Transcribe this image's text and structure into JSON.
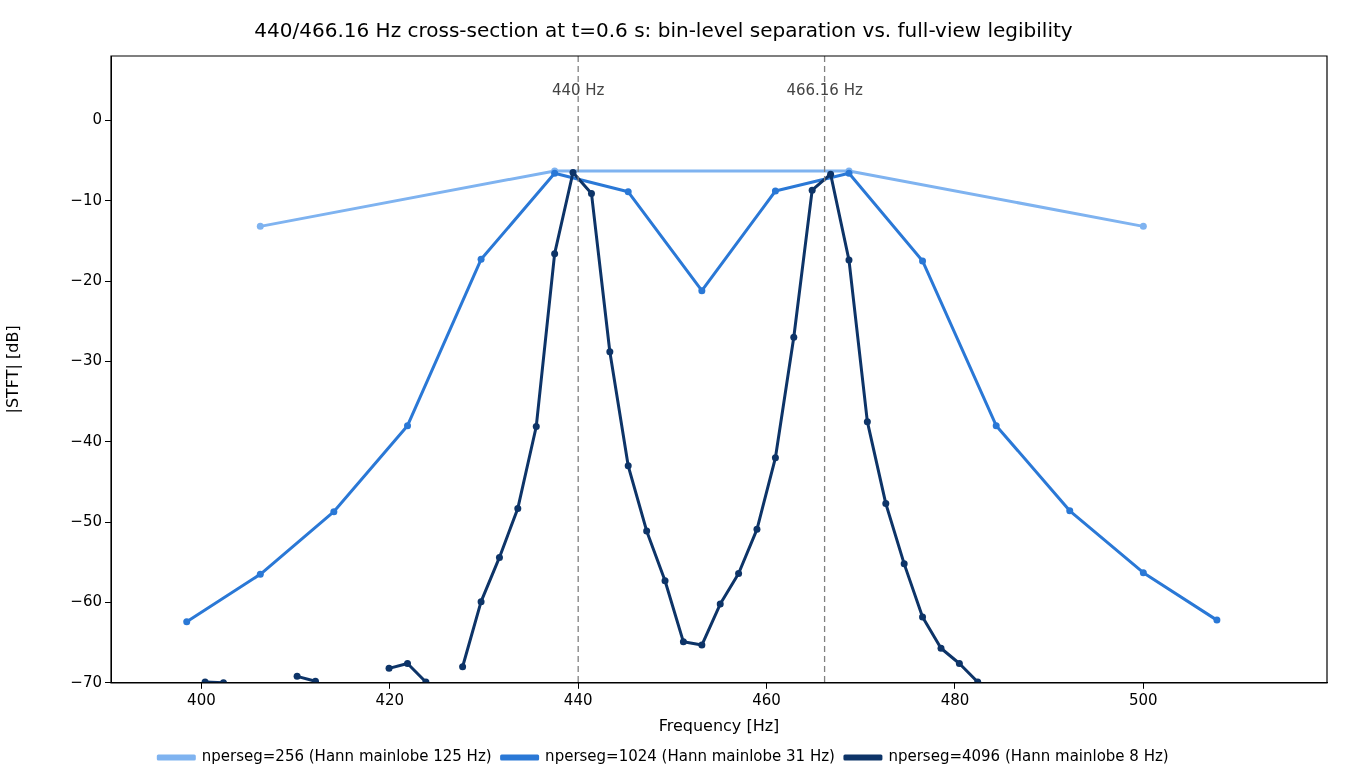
{
  "chart_data": {
    "type": "line",
    "title": "440/466.16 Hz cross-section at t=0.6 s: bin-level separation vs. full-view legibility",
    "xlabel": "Frequency [Hz]",
    "ylabel": "|STFT| [dB]",
    "xlim": [
      390.4,
      519.5
    ],
    "xticks": [
      400,
      420,
      440,
      460,
      480,
      500
    ],
    "ylim": [
      -70,
      8
    ],
    "yticks": [
      {
        "value": -70,
        "label": "−70"
      },
      {
        "value": -60,
        "label": "−60"
      },
      {
        "value": -50,
        "label": "−50"
      },
      {
        "value": -40,
        "label": "−40"
      },
      {
        "value": -30,
        "label": "−30"
      },
      {
        "value": -20,
        "label": "−20"
      },
      {
        "value": -10,
        "label": "−10"
      },
      0
    ],
    "grid": false,
    "legend": "bottom",
    "marker": "circle",
    "line_style": "solid",
    "ref_lines": [
      {
        "axis": "x",
        "value": 440,
        "label": "440 Hz",
        "color": "#808080",
        "line_style": "dashed"
      },
      {
        "axis": "x",
        "value": 466.16,
        "label": "466.16 Hz",
        "color": "#808080",
        "line_style": "dashed"
      }
    ],
    "series": [
      {
        "name": "nperseg=256 (Hann mainlobe 125 Hz)",
        "color": "#7fb3f0",
        "x": [
          406.25,
          437.5,
          468.75,
          500
        ],
        "values": [
          -13.2,
          -6.3,
          -6.3,
          -13.2
        ]
      },
      {
        "name": "nperseg=1024 (Hann mainlobe 31 Hz)",
        "color": "#2a78d6",
        "x": [
          398.44,
          406.25,
          414.06,
          421.88,
          429.69,
          437.5,
          445.31,
          453.13,
          460.94,
          468.75,
          476.56,
          484.38,
          492.19,
          500,
          507.81
        ],
        "values": [
          -62.4,
          -56.5,
          -48.7,
          -38.0,
          -17.3,
          -6.6,
          -8.9,
          -21.2,
          -8.8,
          -6.6,
          -17.5,
          -38.0,
          -48.6,
          -56.3,
          -62.2
        ]
      },
      {
        "name": "nperseg=4096 (Hann mainlobe 8 Hz)",
        "color": "#0d3468",
        "x": [
          400.39,
          402.34,
          404.3,
          406.25,
          408.2,
          410.16,
          412.11,
          414.06,
          416.02,
          417.97,
          419.92,
          421.88,
          423.83,
          425.78,
          427.73,
          429.69,
          431.64,
          433.59,
          435.55,
          437.5,
          439.45,
          441.41,
          443.36,
          445.31,
          447.27,
          449.22,
          451.17,
          453.13,
          455.08,
          457.03,
          458.98,
          460.94,
          462.89,
          464.84,
          466.8,
          468.75,
          470.7,
          472.66,
          474.61,
          476.56,
          478.52,
          480.47,
          482.42
        ],
        "values": [
          -69.9,
          -70.0,
          null,
          null,
          null,
          -69.2,
          -69.8,
          null,
          null,
          null,
          -68.2,
          -67.6,
          -69.9,
          null,
          -68.0,
          -59.9,
          -54.4,
          -48.3,
          -38.1,
          -16.6,
          -6.5,
          -9.1,
          -28.8,
          -43.0,
          -51.1,
          -57.3,
          -64.9,
          -65.3,
          -60.2,
          -56.4,
          -50.9,
          -42.0,
          -27.0,
          -8.7,
          -6.7,
          -17.4,
          -37.5,
          -47.7,
          -55.2,
          -61.8,
          -65.7,
          -67.6,
          -69.9
        ]
      }
    ]
  }
}
